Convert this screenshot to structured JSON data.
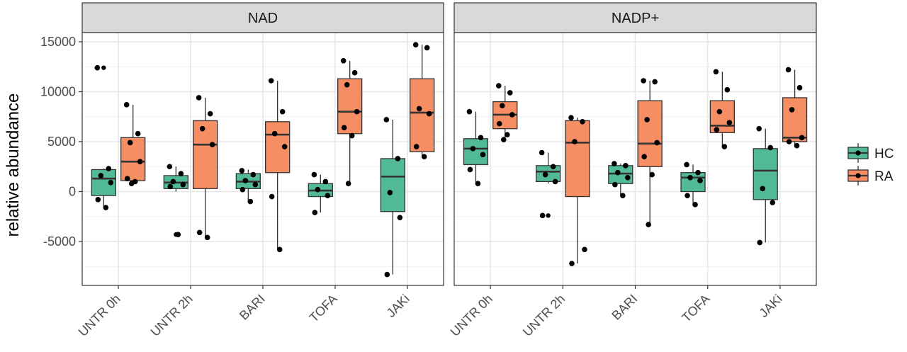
{
  "chart_data": {
    "type": "boxplot",
    "ylabel": "relative abundance",
    "xlabel": "",
    "ylim": [
      -9000,
      16000
    ],
    "yticks": [
      15000,
      10000,
      5000,
      0,
      -5000
    ],
    "ytick_labels": [
      "15000",
      "10000",
      "5000",
      "0",
      "-5000"
    ],
    "categories": [
      "UNTR 0h",
      "UNTR 2h",
      "BARI",
      "TOFA",
      "JAKi"
    ],
    "grid": true,
    "legend": {
      "position": "right",
      "entries": [
        {
          "name": "HC",
          "color": "#52BA97"
        },
        {
          "name": "RA",
          "color": "#F78D63"
        }
      ]
    },
    "panels": [
      {
        "title": "NAD",
        "groups": [
          {
            "category": "UNTR 0h",
            "series": "HC",
            "min": -1500,
            "q1": -400,
            "median": 1300,
            "q3": 2200,
            "max": 2300,
            "outliers": [
              12400
            ],
            "points": [
              12400,
              2300,
              1600,
              900,
              -800,
              -1600
            ]
          },
          {
            "category": "UNTR 0h",
            "series": "RA",
            "min": 800,
            "q1": 1100,
            "median": 3000,
            "q3": 5400,
            "max": 8700,
            "outliers": [],
            "points": [
              8700,
              5800,
              4900,
              3000,
              1300,
              1000,
              800
            ]
          },
          {
            "category": "UNTR 2h",
            "series": "HC",
            "min": 0,
            "q1": 300,
            "median": 900,
            "q3": 1600,
            "max": 2500,
            "outliers": [
              -4300
            ],
            "points": [
              2500,
              1800,
              1000,
              700,
              500,
              -4300
            ]
          },
          {
            "category": "UNTR 2h",
            "series": "RA",
            "min": -4500,
            "q1": 300,
            "median": 4700,
            "q3": 7100,
            "max": 9400,
            "outliers": [],
            "points": [
              9400,
              7800,
              6300,
              4700,
              -4100,
              -4600
            ]
          },
          {
            "category": "BARI",
            "series": "HC",
            "min": -1000,
            "q1": 300,
            "median": 1000,
            "q3": 1800,
            "max": 2200,
            "outliers": [],
            "points": [
              2100,
              1700,
              1100,
              700,
              200,
              -1000
            ]
          },
          {
            "category": "BARI",
            "series": "RA",
            "min": -5800,
            "q1": 1900,
            "median": 5700,
            "q3": 7000,
            "max": 11100,
            "outliers": [],
            "points": [
              11100,
              8000,
              5800,
              4500,
              -500,
              -5800
            ]
          },
          {
            "category": "TOFA",
            "series": "HC",
            "min": -2100,
            "q1": -500,
            "median": 100,
            "q3": 800,
            "max": 1700,
            "outliers": [],
            "points": [
              1700,
              1000,
              200,
              -400,
              -2100
            ]
          },
          {
            "category": "TOFA",
            "series": "RA",
            "min": 700,
            "q1": 5800,
            "median": 8000,
            "q3": 11300,
            "max": 13100,
            "outliers": [],
            "points": [
              13100,
              11900,
              10700,
              8000,
              6400,
              5600,
              800
            ]
          },
          {
            "category": "JAKi",
            "series": "HC",
            "min": -8300,
            "q1": -2000,
            "median": 1500,
            "q3": 3300,
            "max": 7200,
            "outliers": [],
            "points": [
              7200,
              3300,
              -100,
              -2600,
              -8300
            ]
          },
          {
            "category": "JAKi",
            "series": "RA",
            "min": 3400,
            "q1": 4000,
            "median": 7900,
            "q3": 11300,
            "max": 14700,
            "outliers": [],
            "points": [
              14700,
              14400,
              8300,
              7800,
              4500,
              3500
            ]
          }
        ]
      },
      {
        "title": "NADP+",
        "groups": [
          {
            "category": "UNTR 0h",
            "series": "HC",
            "min": 800,
            "q1": 2700,
            "median": 4300,
            "q3": 5300,
            "max": 8000,
            "outliers": [],
            "points": [
              8000,
              5400,
              4300,
              3700,
              2200,
              800
            ]
          },
          {
            "category": "UNTR 0h",
            "series": "RA",
            "min": 5200,
            "q1": 6300,
            "median": 7700,
            "q3": 9000,
            "max": 10600,
            "outliers": [],
            "points": [
              10600,
              9900,
              8600,
              7700,
              6800,
              5700,
              5200
            ]
          },
          {
            "category": "UNTR 2h",
            "series": "HC",
            "min": 800,
            "q1": 1000,
            "median": 2000,
            "q3": 2600,
            "max": 3900,
            "outliers": [
              -2400
            ],
            "points": [
              3900,
              2500,
              1700,
              1000,
              -2400
            ]
          },
          {
            "category": "UNTR 2h",
            "series": "RA",
            "min": -7200,
            "q1": -500,
            "median": 4900,
            "q3": 7100,
            "max": 7400,
            "outliers": [],
            "points": [
              7400,
              7000,
              5000,
              -5800,
              -7200
            ]
          },
          {
            "category": "BARI",
            "series": "HC",
            "min": -400,
            "q1": 800,
            "median": 1800,
            "q3": 2600,
            "max": 2800,
            "outliers": [],
            "points": [
              2800,
              2600,
              1900,
              1400,
              700,
              -400
            ]
          },
          {
            "category": "BARI",
            "series": "RA",
            "min": -3300,
            "q1": 2500,
            "median": 4800,
            "q3": 9100,
            "max": 11100,
            "outliers": [],
            "points": [
              11100,
              11000,
              7200,
              4900,
              3500,
              1700,
              -3300
            ]
          },
          {
            "category": "TOFA",
            "series": "HC",
            "min": -1300,
            "q1": 0,
            "median": 1400,
            "q3": 1900,
            "max": 2700,
            "outliers": [],
            "points": [
              2700,
              1900,
              1400,
              1100,
              -400,
              -1300
            ]
          },
          {
            "category": "TOFA",
            "series": "RA",
            "min": 4500,
            "q1": 5900,
            "median": 6600,
            "q3": 9100,
            "max": 12000,
            "outliers": [],
            "points": [
              12000,
              10200,
              8000,
              6900,
              6200,
              4500
            ]
          },
          {
            "category": "JAKi",
            "series": "HC",
            "min": -5100,
            "q1": -800,
            "median": 2100,
            "q3": 4300,
            "max": 6300,
            "outliers": [],
            "points": [
              6300,
              4400,
              300,
              -1100,
              -5100
            ]
          },
          {
            "category": "JAKi",
            "series": "RA",
            "min": 4500,
            "q1": 5000,
            "median": 5400,
            "q3": 9400,
            "max": 12200,
            "outliers": [],
            "points": [
              12200,
              10400,
              8200,
              5400,
              5000,
              4600
            ]
          }
        ]
      }
    ]
  }
}
